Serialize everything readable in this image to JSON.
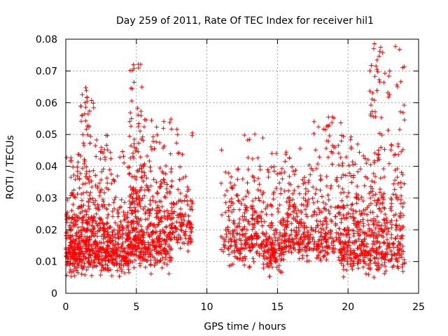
{
  "chart_data": {
    "type": "scatter",
    "title": "Day 259 of 2011, Rate Of TEC Index for receiver hil1",
    "xlabel": "GPS time / hours",
    "ylabel": "ROTI / TECUs",
    "xlim": [
      0,
      25
    ],
    "ylim": [
      0,
      0.08
    ],
    "xticks": [
      0,
      5,
      10,
      15,
      20,
      25
    ],
    "yticks": [
      0,
      0.01,
      0.02,
      0.03,
      0.04,
      0.05,
      0.06,
      0.07,
      0.08
    ],
    "xtick_labels": [
      "0",
      "5",
      "10",
      "15",
      "20",
      "25"
    ],
    "ytick_labels": [
      "0",
      "0.01",
      "0.02",
      "0.03",
      "0.04",
      "0.05",
      "0.06",
      "0.07",
      "0.08"
    ],
    "grid": true,
    "marker": "plus",
    "series_color": "#ff0000",
    "density_profile": [
      {
        "x0": 0.0,
        "x1": 1.0,
        "ymin": 0.005,
        "ymax": 0.045,
        "n": 200
      },
      {
        "x0": 1.0,
        "x1": 2.0,
        "ymin": 0.005,
        "ymax": 0.065,
        "n": 220
      },
      {
        "x0": 2.0,
        "x1": 3.0,
        "ymin": 0.005,
        "ymax": 0.05,
        "n": 180
      },
      {
        "x0": 3.0,
        "x1": 4.5,
        "ymin": 0.005,
        "ymax": 0.045,
        "n": 220
      },
      {
        "x0": 4.5,
        "x1": 5.5,
        "ymin": 0.007,
        "ymax": 0.073,
        "n": 220
      },
      {
        "x0": 5.5,
        "x1": 7.5,
        "ymin": 0.006,
        "ymax": 0.055,
        "n": 300
      },
      {
        "x0": 7.5,
        "x1": 9.0,
        "ymin": 0.012,
        "ymax": 0.052,
        "n": 120
      },
      {
        "x0": 11.0,
        "x1": 12.5,
        "ymin": 0.008,
        "ymax": 0.046,
        "n": 110
      },
      {
        "x0": 12.5,
        "x1": 14.0,
        "ymin": 0.008,
        "ymax": 0.055,
        "n": 150
      },
      {
        "x0": 14.0,
        "x1": 15.5,
        "ymin": 0.005,
        "ymax": 0.045,
        "n": 180
      },
      {
        "x0": 15.5,
        "x1": 17.5,
        "ymin": 0.01,
        "ymax": 0.047,
        "n": 200
      },
      {
        "x0": 17.5,
        "x1": 19.5,
        "ymin": 0.008,
        "ymax": 0.056,
        "n": 200
      },
      {
        "x0": 19.5,
        "x1": 21.5,
        "ymin": 0.005,
        "ymax": 0.05,
        "n": 260
      },
      {
        "x0": 21.5,
        "x1": 24.0,
        "ymin": 0.004,
        "ymax": 0.079,
        "n": 340
      }
    ]
  }
}
